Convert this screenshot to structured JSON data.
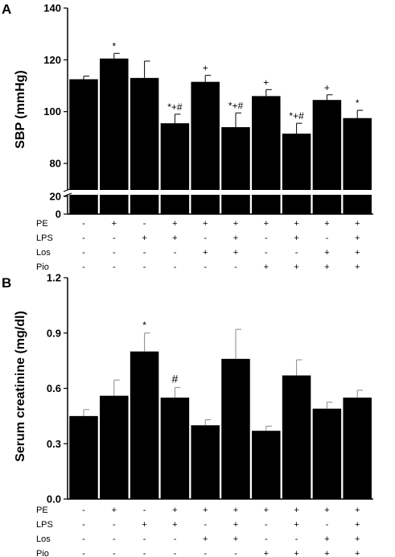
{
  "chart_data": [
    {
      "panel": "A",
      "type": "bar",
      "ylabel": "SBP (mmHg)",
      "ylim": [
        0,
        140
      ],
      "axis_break": [
        20,
        80
      ],
      "yticks": [
        0,
        20,
        80,
        100,
        120,
        140
      ],
      "values": [
        112.5,
        120.5,
        113.0,
        95.5,
        111.5,
        94.0,
        106.0,
        91.5,
        104.5,
        97.5
      ],
      "errors": [
        1.2,
        2.0,
        6.5,
        3.5,
        2.5,
        5.5,
        2.5,
        4.0,
        2.0,
        3.0
      ],
      "significance": [
        "",
        "*",
        "",
        "*+#",
        "+",
        "*+#",
        "+",
        "*+#",
        "+",
        "*"
      ],
      "treatments": [
        {
          "label": "PE",
          "marks": [
            "-",
            "+",
            "-",
            "+",
            "+",
            "+",
            "+",
            "+",
            "+",
            "+"
          ]
        },
        {
          "label": "LPS",
          "marks": [
            "-",
            "-",
            "+",
            "+",
            "-",
            "+",
            "-",
            "+",
            "-",
            "+"
          ]
        },
        {
          "label": "Los",
          "marks": [
            "-",
            "-",
            "-",
            "-",
            "+",
            "+",
            "-",
            "-",
            "+",
            "+"
          ]
        },
        {
          "label": "Pio",
          "marks": [
            "-",
            "-",
            "-",
            "-",
            "-",
            "-",
            "+",
            "+",
            "+",
            "+"
          ]
        }
      ]
    },
    {
      "panel": "B",
      "type": "bar",
      "ylabel": "Serum creatinine (mg/dl)",
      "ylim": [
        0,
        1.2
      ],
      "yticks": [
        "0.0",
        "0.3",
        "0.6",
        "0.9",
        "1.2"
      ],
      "values": [
        0.45,
        0.56,
        0.8,
        0.55,
        0.4,
        0.76,
        0.37,
        0.67,
        0.49,
        0.55
      ],
      "errors": [
        0.035,
        0.085,
        0.1,
        0.055,
        0.03,
        0.16,
        0.025,
        0.085,
        0.035,
        0.04
      ],
      "significance": [
        "",
        "",
        "*",
        "#",
        "",
        "",
        "",
        "",
        "",
        ""
      ],
      "treatments": [
        {
          "label": "PE",
          "marks": [
            "-",
            "+",
            "-",
            "+",
            "+",
            "+",
            "+",
            "+",
            "+",
            "+"
          ]
        },
        {
          "label": "LPS",
          "marks": [
            "-",
            "-",
            "+",
            "+",
            "-",
            "+",
            "-",
            "+",
            "-",
            "+"
          ]
        },
        {
          "label": "Los",
          "marks": [
            "-",
            "-",
            "-",
            "-",
            "+",
            "+",
            "-",
            "-",
            "+",
            "+"
          ]
        },
        {
          "label": "Pio",
          "marks": [
            "-",
            "-",
            "-",
            "-",
            "-",
            "-",
            "+",
            "+",
            "+",
            "+"
          ]
        }
      ]
    }
  ]
}
